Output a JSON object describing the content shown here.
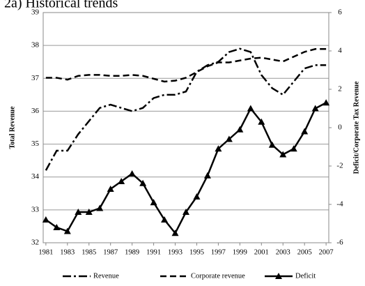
{
  "chart_data": {
    "type": "line",
    "title": "2a) Historical trends",
    "y_label": "Total Revenue",
    "y2_label": "Deficit/Corporate Tax Revenue",
    "x": [
      1981,
      1982,
      1983,
      1984,
      1985,
      1986,
      1987,
      1988,
      1989,
      1990,
      1991,
      1992,
      1993,
      1994,
      1995,
      1996,
      1997,
      1998,
      1999,
      2000,
      2001,
      2002,
      2003,
      2004,
      2005,
      2006,
      2007
    ],
    "xlim": [
      1980.75,
      2007.25
    ],
    "xticks": [
      1981,
      1983,
      1985,
      1987,
      1989,
      1991,
      1993,
      1995,
      1997,
      1999,
      2001,
      2003,
      2005,
      2007
    ],
    "ylim": [
      32,
      39
    ],
    "yticks": [
      32,
      33,
      34,
      35,
      36,
      37,
      38,
      39
    ],
    "y2lim": [
      -6,
      6
    ],
    "y2ticks": [
      -6,
      -4,
      -2,
      0,
      2,
      4,
      6
    ],
    "grid": true,
    "legend": "bottom",
    "series": [
      {
        "name": "Revenue",
        "color": "#000000",
        "style": "dash-dot",
        "axis": "y",
        "values": [
          34.2,
          34.8,
          34.8,
          35.3,
          35.7,
          36.1,
          36.2,
          36.1,
          36.0,
          36.1,
          36.4,
          36.5,
          36.5,
          36.6,
          37.2,
          37.4,
          37.5,
          37.8,
          37.9,
          37.8,
          37.1,
          36.7,
          36.5,
          36.9,
          37.3,
          37.4,
          37.4
        ]
      },
      {
        "name": "Corporate revenue",
        "color": "#000000",
        "style": "dash",
        "axis": "y2",
        "values": [
          2.6,
          2.6,
          2.5,
          2.7,
          2.75,
          2.75,
          2.7,
          2.7,
          2.75,
          2.7,
          2.55,
          2.4,
          2.45,
          2.6,
          2.9,
          3.2,
          3.4,
          3.4,
          3.5,
          3.6,
          3.65,
          3.55,
          3.45,
          3.7,
          3.95,
          4.1,
          4.1
        ]
      },
      {
        "name": "Deficit",
        "color": "#000000",
        "style": "solid",
        "marker": "triangle",
        "axis": "y2",
        "values": [
          -4.8,
          -5.2,
          -5.4,
          -4.4,
          -4.4,
          -4.2,
          -3.2,
          -2.8,
          -2.4,
          -2.9,
          -3.9,
          -4.8,
          -5.5,
          -4.4,
          -3.6,
          -2.5,
          -1.1,
          -0.6,
          -0.1,
          1.0,
          0.3,
          -0.9,
          -1.4,
          -1.1,
          -0.2,
          1.0,
          1.3
        ]
      }
    ]
  }
}
